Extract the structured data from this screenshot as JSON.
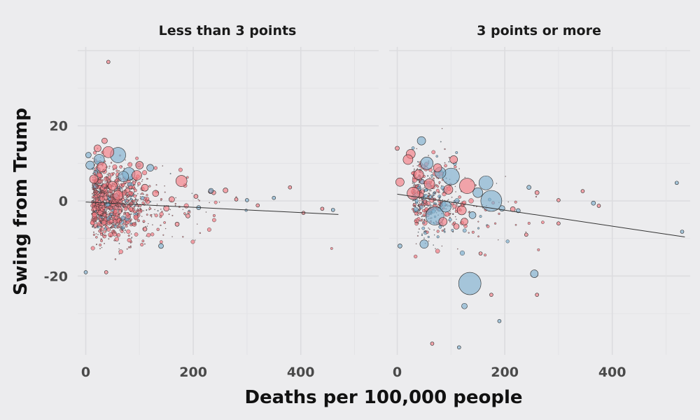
{
  "chart_data": {
    "type": "scatter",
    "xlabel": "Deaths per 100,000 people",
    "ylabel": "Swing from Trump",
    "colors": {
      "blue": "#7fb0d0",
      "red": "#f47c84",
      "outline": "#2b2b2b",
      "trend": "#333333"
    },
    "panels": [
      {
        "title": "Less than 3 points",
        "xlim": [
          -15,
          545
        ],
        "ylim": [
          -41,
          41
        ],
        "x_ticks": [
          0,
          200,
          400
        ],
        "y_ticks": [
          -20,
          0,
          20
        ],
        "trend": {
          "x0": 0,
          "y0": -0.3,
          "x1": 470,
          "y1": -3.6
        },
        "cloud": {
          "x_center": 12,
          "x_spread": 45,
          "y_spread": 4.6,
          "count": 1300,
          "max_x": 470
        },
        "points": [
          {
            "x": 60,
            "y": 12.2,
            "r": 2.2,
            "c": "blue"
          },
          {
            "x": 42,
            "y": 13,
            "r": 1.6,
            "c": "red"
          },
          {
            "x": 25,
            "y": 11,
            "r": 1.5,
            "c": "blue"
          },
          {
            "x": 8,
            "y": 9.5,
            "r": 1.2,
            "c": "blue"
          },
          {
            "x": 120,
            "y": 8.8,
            "r": 1.0,
            "c": "blue"
          },
          {
            "x": 80,
            "y": 7.2,
            "r": 1.8,
            "c": "blue"
          },
          {
            "x": 95,
            "y": 6.8,
            "r": 1.4,
            "c": "red"
          },
          {
            "x": 178,
            "y": 5.3,
            "r": 1.6,
            "c": "red"
          },
          {
            "x": 35,
            "y": 16,
            "r": 0.8,
            "c": "red"
          },
          {
            "x": 22,
            "y": 14,
            "r": 1.0,
            "c": "red"
          },
          {
            "x": 140,
            "y": -12,
            "r": 0.7,
            "c": "blue"
          },
          {
            "x": 232,
            "y": 2.5,
            "r": 0.6,
            "c": "red"
          },
          {
            "x": 260,
            "y": 2.8,
            "r": 0.7,
            "c": "red"
          },
          {
            "x": 238,
            "y": 2.2,
            "r": 0.6,
            "c": "red"
          },
          {
            "x": 233,
            "y": 2.7,
            "r": 0.7,
            "c": "blue"
          },
          {
            "x": 380,
            "y": 3.6,
            "r": 0.5,
            "c": "red"
          },
          {
            "x": 405,
            "y": -3.2,
            "r": 0.5,
            "c": "red"
          },
          {
            "x": 460,
            "y": -2.4,
            "r": 0.5,
            "c": "blue"
          },
          {
            "x": 42,
            "y": 37,
            "r": 0.5,
            "c": "red"
          },
          {
            "x": 0,
            "y": -19,
            "r": 0.5,
            "c": "blue"
          },
          {
            "x": 38,
            "y": -19,
            "r": 0.5,
            "c": "red"
          },
          {
            "x": 150,
            "y": -2.0,
            "r": 0.8,
            "c": "red"
          },
          {
            "x": 160,
            "y": 0.4,
            "r": 0.8,
            "c": "red"
          },
          {
            "x": 205,
            "y": 1.2,
            "r": 0.6,
            "c": "red"
          },
          {
            "x": 210,
            "y": -1.8,
            "r": 0.6,
            "c": "blue"
          },
          {
            "x": 280,
            "y": 0.4,
            "r": 0.5,
            "c": "red"
          },
          {
            "x": 300,
            "y": 0.2,
            "r": 0.5,
            "c": "blue"
          },
          {
            "x": 320,
            "y": -1.2,
            "r": 0.5,
            "c": "red"
          },
          {
            "x": 350,
            "y": 0.8,
            "r": 0.5,
            "c": "blue"
          },
          {
            "x": 440,
            "y": -2.1,
            "r": 0.5,
            "c": "red"
          },
          {
            "x": 190,
            "y": -4.0,
            "r": 0.6,
            "c": "red"
          },
          {
            "x": 170,
            "y": -6.2,
            "r": 0.6,
            "c": "red"
          },
          {
            "x": 110,
            "y": -7.5,
            "r": 0.6,
            "c": "red"
          },
          {
            "x": 100,
            "y": 9.5,
            "r": 1.1,
            "c": "red"
          },
          {
            "x": 70,
            "y": 6.5,
            "r": 1.5,
            "c": "blue"
          },
          {
            "x": 15,
            "y": 5.8,
            "r": 1.2,
            "c": "red"
          },
          {
            "x": 50,
            "y": 4.0,
            "r": 1.3,
            "c": "red"
          },
          {
            "x": 110,
            "y": 3.5,
            "r": 1.0,
            "c": "red"
          },
          {
            "x": 130,
            "y": 2.0,
            "r": 0.9,
            "c": "red"
          },
          {
            "x": 5,
            "y": 12.2,
            "r": 0.8,
            "c": "blue"
          },
          {
            "x": 30,
            "y": 9.0,
            "r": 1.4,
            "c": "red"
          },
          {
            "x": 60,
            "y": 1.5,
            "r": 1.4,
            "c": "red"
          }
        ]
      },
      {
        "title": "3 points or more",
        "xlim": [
          -15,
          545
        ],
        "ylim": [
          -41,
          41
        ],
        "x_ticks": [
          0,
          200,
          400
        ],
        "y_ticks": [
          -20,
          0,
          20
        ],
        "trend": {
          "x0": 0,
          "y0": 1.8,
          "x1": 535,
          "y1": -9.6
        },
        "cloud": {
          "x_center": 28,
          "x_spread": 45,
          "y_spread": 5.4,
          "count": 520,
          "max_x": 300
        },
        "points": [
          {
            "x": 135,
            "y": -22,
            "r": 3.2,
            "c": "blue"
          },
          {
            "x": 175,
            "y": 0,
            "r": 3.0,
            "c": "blue"
          },
          {
            "x": 70,
            "y": -4,
            "r": 2.6,
            "c": "blue"
          },
          {
            "x": 100,
            "y": 6.5,
            "r": 2.4,
            "c": "blue"
          },
          {
            "x": 165,
            "y": 4.8,
            "r": 2.0,
            "c": "blue"
          },
          {
            "x": 130,
            "y": 4.0,
            "r": 2.2,
            "c": "red"
          },
          {
            "x": 55,
            "y": 10,
            "r": 1.8,
            "c": "blue"
          },
          {
            "x": 45,
            "y": 16,
            "r": 1.2,
            "c": "blue"
          },
          {
            "x": 25,
            "y": 12.5,
            "r": 1.3,
            "c": "red"
          },
          {
            "x": 20,
            "y": 11,
            "r": 1.4,
            "c": "red"
          },
          {
            "x": 105,
            "y": 11,
            "r": 1.1,
            "c": "red"
          },
          {
            "x": 80,
            "y": 7.5,
            "r": 1.6,
            "c": "blue"
          },
          {
            "x": 150,
            "y": 2.2,
            "r": 1.4,
            "c": "blue"
          },
          {
            "x": 90,
            "y": -1.5,
            "r": 1.6,
            "c": "blue"
          },
          {
            "x": 50,
            "y": -11.5,
            "r": 1.2,
            "c": "blue"
          },
          {
            "x": 255,
            "y": -19.4,
            "r": 1.1,
            "c": "blue"
          },
          {
            "x": 125,
            "y": -28,
            "r": 0.8,
            "c": "blue"
          },
          {
            "x": 120,
            "y": -2.5,
            "r": 1.3,
            "c": "red"
          },
          {
            "x": 85,
            "y": -5.5,
            "r": 1.2,
            "c": "red"
          },
          {
            "x": 125,
            "y": -5.5,
            "r": 1.0,
            "c": "red"
          },
          {
            "x": 60,
            "y": 4.5,
            "r": 1.5,
            "c": "red"
          },
          {
            "x": 40,
            "y": 7.0,
            "r": 1.4,
            "c": "red"
          },
          {
            "x": 5,
            "y": 5.0,
            "r": 1.2,
            "c": "red"
          },
          {
            "x": 245,
            "y": 3.6,
            "r": 0.6,
            "c": "blue"
          },
          {
            "x": 260,
            "y": 2.2,
            "r": 0.6,
            "c": "red"
          },
          {
            "x": 300,
            "y": 0.2,
            "r": 0.5,
            "c": "red"
          },
          {
            "x": 345,
            "y": 2.6,
            "r": 0.5,
            "c": "red"
          },
          {
            "x": 365,
            "y": -0.6,
            "r": 0.6,
            "c": "blue"
          },
          {
            "x": 375,
            "y": -1.3,
            "r": 0.5,
            "c": "red"
          },
          {
            "x": 520,
            "y": 4.8,
            "r": 0.5,
            "c": "blue"
          },
          {
            "x": 530,
            "y": -8.2,
            "r": 0.5,
            "c": "blue"
          },
          {
            "x": 240,
            "y": -9.0,
            "r": 0.5,
            "c": "red"
          },
          {
            "x": 300,
            "y": -6.0,
            "r": 0.5,
            "c": "red"
          },
          {
            "x": 175,
            "y": -25,
            "r": 0.5,
            "c": "red"
          },
          {
            "x": 190,
            "y": -32,
            "r": 0.5,
            "c": "blue"
          },
          {
            "x": 260,
            "y": -25,
            "r": 0.5,
            "c": "red"
          },
          {
            "x": 65,
            "y": -38,
            "r": 0.5,
            "c": "red"
          },
          {
            "x": 115,
            "y": -39,
            "r": 0.5,
            "c": "blue"
          },
          {
            "x": 155,
            "y": -14,
            "r": 0.5,
            "c": "red"
          },
          {
            "x": 0,
            "y": 14,
            "r": 0.6,
            "c": "red"
          },
          {
            "x": 5,
            "y": -12,
            "r": 0.6,
            "c": "blue"
          },
          {
            "x": 215,
            "y": -2.2,
            "r": 0.7,
            "c": "red"
          },
          {
            "x": 225,
            "y": -2.6,
            "r": 0.6,
            "c": "blue"
          },
          {
            "x": 195,
            "y": -2.0,
            "r": 0.8,
            "c": "blue"
          },
          {
            "x": 30,
            "y": 2.0,
            "r": 1.8,
            "c": "red"
          },
          {
            "x": 95,
            "y": 3.0,
            "r": 1.3,
            "c": "red"
          },
          {
            "x": 140,
            "y": -3.8,
            "r": 1.0,
            "c": "blue"
          },
          {
            "x": 75,
            "y": 8.8,
            "r": 1.2,
            "c": "red"
          },
          {
            "x": 110,
            "y": -6.8,
            "r": 0.8,
            "c": "red"
          }
        ]
      }
    ]
  }
}
